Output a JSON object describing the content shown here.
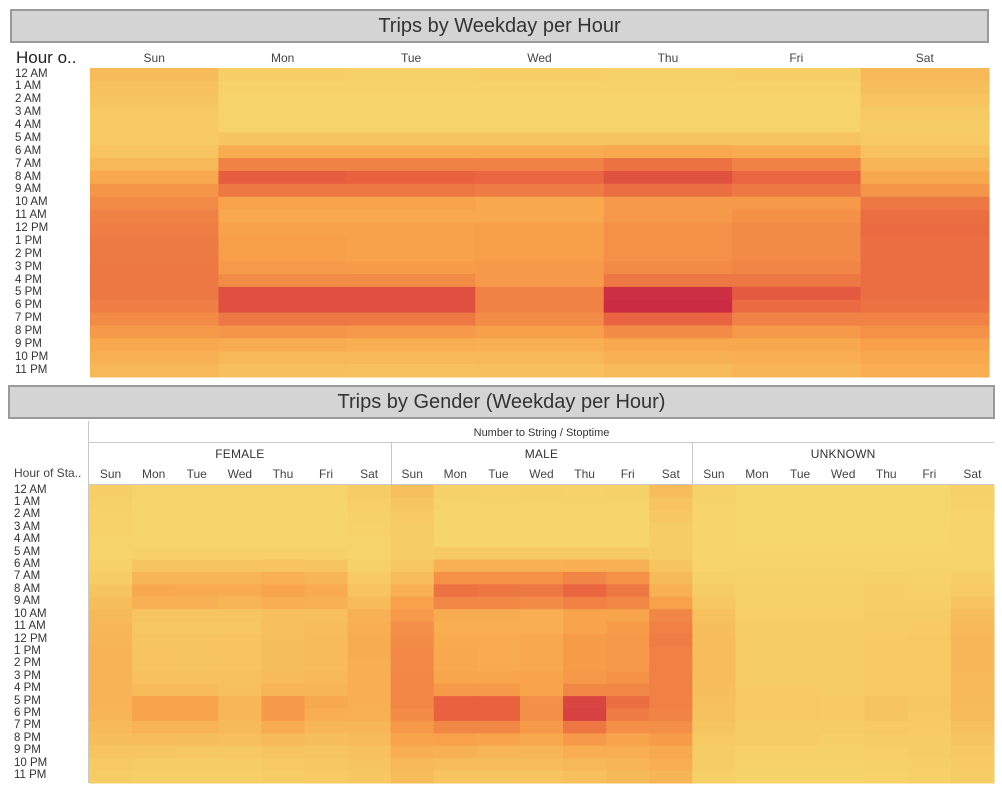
{
  "chart_data": [
    {
      "type": "heatmap",
      "title": "Trips by Weekday per Hour",
      "row_field": "Hour o..",
      "columns": [
        "Sun",
        "Mon",
        "Tue",
        "Wed",
        "Thu",
        "Fri",
        "Sat"
      ],
      "rows": [
        "12 AM",
        "1 AM",
        "2 AM",
        "3 AM",
        "4 AM",
        "5 AM",
        "6 AM",
        "7 AM",
        "8 AM",
        "9 AM",
        "10 AM",
        "11 AM",
        "12 PM",
        "1 PM",
        "2 PM",
        "3 PM",
        "4 PM",
        "5 PM",
        "6 PM",
        "7 PM",
        "8 PM",
        "9 PM",
        "10 PM",
        "11 PM"
      ],
      "values_relative_intensity": [
        [
          0.18,
          0.06,
          0.05,
          0.06,
          0.05,
          0.06,
          0.2
        ],
        [
          0.14,
          0.04,
          0.04,
          0.04,
          0.04,
          0.04,
          0.16
        ],
        [
          0.12,
          0.03,
          0.03,
          0.03,
          0.03,
          0.03,
          0.13
        ],
        [
          0.1,
          0.03,
          0.03,
          0.03,
          0.03,
          0.03,
          0.1
        ],
        [
          0.09,
          0.03,
          0.03,
          0.03,
          0.03,
          0.03,
          0.08
        ],
        [
          0.09,
          0.12,
          0.12,
          0.12,
          0.12,
          0.12,
          0.09
        ],
        [
          0.13,
          0.28,
          0.28,
          0.28,
          0.3,
          0.28,
          0.14
        ],
        [
          0.2,
          0.5,
          0.5,
          0.5,
          0.58,
          0.5,
          0.22
        ],
        [
          0.3,
          0.68,
          0.66,
          0.64,
          0.74,
          0.64,
          0.3
        ],
        [
          0.4,
          0.55,
          0.55,
          0.53,
          0.6,
          0.55,
          0.4
        ],
        [
          0.45,
          0.32,
          0.32,
          0.3,
          0.38,
          0.38,
          0.55
        ],
        [
          0.5,
          0.3,
          0.3,
          0.3,
          0.38,
          0.42,
          0.6
        ],
        [
          0.52,
          0.33,
          0.33,
          0.35,
          0.42,
          0.45,
          0.62
        ],
        [
          0.54,
          0.35,
          0.33,
          0.35,
          0.42,
          0.45,
          0.6
        ],
        [
          0.54,
          0.35,
          0.33,
          0.35,
          0.42,
          0.45,
          0.6
        ],
        [
          0.55,
          0.37,
          0.36,
          0.38,
          0.45,
          0.48,
          0.6
        ],
        [
          0.55,
          0.45,
          0.45,
          0.38,
          0.55,
          0.55,
          0.6
        ],
        [
          0.55,
          0.75,
          0.75,
          0.5,
          0.9,
          0.7,
          0.6
        ],
        [
          0.52,
          0.75,
          0.75,
          0.5,
          0.92,
          0.62,
          0.58
        ],
        [
          0.45,
          0.55,
          0.55,
          0.45,
          0.65,
          0.5,
          0.5
        ],
        [
          0.38,
          0.4,
          0.38,
          0.35,
          0.45,
          0.38,
          0.42
        ],
        [
          0.3,
          0.28,
          0.26,
          0.25,
          0.3,
          0.3,
          0.34
        ],
        [
          0.24,
          0.2,
          0.2,
          0.2,
          0.24,
          0.26,
          0.3
        ],
        [
          0.2,
          0.15,
          0.14,
          0.15,
          0.18,
          0.22,
          0.26
        ]
      ],
      "color_scale": [
        "#f6d96c",
        "#f8a24a",
        "#e8613f",
        "#c21b45"
      ]
    },
    {
      "type": "heatmap",
      "title": "Trips by Gender (Weekday per Hour)",
      "row_field": "Hour of Sta..",
      "column_field": "Number to String / Stoptime",
      "groups": [
        "FEMALE",
        "MALE",
        "UNKNOWN"
      ],
      "columns": [
        "Sun",
        "Mon",
        "Tue",
        "Wed",
        "Thu",
        "Fri",
        "Sat"
      ],
      "rows": [
        "12 AM",
        "1 AM",
        "2 AM",
        "3 AM",
        "4 AM",
        "5 AM",
        "6 AM",
        "7 AM",
        "8 AM",
        "9 AM",
        "10 AM",
        "11 AM",
        "12 PM",
        "1 PM",
        "2 PM",
        "3 PM",
        "4 PM",
        "5 PM",
        "6 PM",
        "7 PM",
        "8 PM",
        "9 PM",
        "10 PM",
        "11 PM"
      ],
      "values_relative_intensity": {
        "FEMALE": [
          [
            0.06,
            0.03,
            0.03,
            0.03,
            0.03,
            0.03,
            0.07
          ],
          [
            0.05,
            0.02,
            0.02,
            0.02,
            0.02,
            0.02,
            0.06
          ],
          [
            0.04,
            0.02,
            0.02,
            0.02,
            0.02,
            0.02,
            0.05
          ],
          [
            0.04,
            0.02,
            0.02,
            0.02,
            0.02,
            0.02,
            0.04
          ],
          [
            0.03,
            0.02,
            0.02,
            0.02,
            0.02,
            0.02,
            0.03
          ],
          [
            0.03,
            0.05,
            0.05,
            0.05,
            0.05,
            0.05,
            0.03
          ],
          [
            0.05,
            0.12,
            0.12,
            0.12,
            0.13,
            0.12,
            0.05
          ],
          [
            0.08,
            0.22,
            0.22,
            0.22,
            0.25,
            0.22,
            0.09
          ],
          [
            0.12,
            0.3,
            0.28,
            0.28,
            0.32,
            0.28,
            0.13
          ],
          [
            0.16,
            0.24,
            0.24,
            0.22,
            0.26,
            0.24,
            0.18
          ],
          [
            0.19,
            0.12,
            0.12,
            0.12,
            0.15,
            0.15,
            0.24
          ],
          [
            0.21,
            0.11,
            0.11,
            0.11,
            0.15,
            0.17,
            0.26
          ],
          [
            0.22,
            0.12,
            0.12,
            0.13,
            0.16,
            0.18,
            0.27
          ],
          [
            0.23,
            0.13,
            0.12,
            0.13,
            0.16,
            0.18,
            0.27
          ],
          [
            0.23,
            0.13,
            0.12,
            0.13,
            0.16,
            0.18,
            0.26
          ],
          [
            0.23,
            0.14,
            0.14,
            0.14,
            0.18,
            0.2,
            0.26
          ],
          [
            0.23,
            0.18,
            0.18,
            0.15,
            0.22,
            0.22,
            0.26
          ],
          [
            0.23,
            0.32,
            0.32,
            0.21,
            0.38,
            0.3,
            0.26
          ],
          [
            0.22,
            0.32,
            0.32,
            0.21,
            0.38,
            0.26,
            0.25
          ],
          [
            0.19,
            0.23,
            0.23,
            0.19,
            0.27,
            0.21,
            0.21
          ],
          [
            0.16,
            0.17,
            0.16,
            0.15,
            0.19,
            0.16,
            0.18
          ],
          [
            0.12,
            0.12,
            0.11,
            0.1,
            0.12,
            0.12,
            0.14
          ],
          [
            0.1,
            0.08,
            0.08,
            0.08,
            0.1,
            0.11,
            0.12
          ],
          [
            0.08,
            0.06,
            0.06,
            0.06,
            0.07,
            0.09,
            0.11
          ]
        ],
        "MALE": [
          [
            0.15,
            0.05,
            0.04,
            0.05,
            0.04,
            0.05,
            0.17
          ],
          [
            0.12,
            0.03,
            0.03,
            0.03,
            0.03,
            0.03,
            0.13
          ],
          [
            0.1,
            0.02,
            0.02,
            0.02,
            0.02,
            0.02,
            0.11
          ],
          [
            0.08,
            0.02,
            0.02,
            0.02,
            0.02,
            0.02,
            0.08
          ],
          [
            0.07,
            0.02,
            0.02,
            0.02,
            0.02,
            0.02,
            0.07
          ],
          [
            0.07,
            0.1,
            0.1,
            0.1,
            0.1,
            0.1,
            0.07
          ],
          [
            0.11,
            0.24,
            0.24,
            0.24,
            0.26,
            0.24,
            0.12
          ],
          [
            0.17,
            0.42,
            0.42,
            0.42,
            0.48,
            0.42,
            0.19
          ],
          [
            0.25,
            0.58,
            0.56,
            0.55,
            0.64,
            0.55,
            0.25
          ],
          [
            0.34,
            0.47,
            0.47,
            0.45,
            0.51,
            0.47,
            0.34
          ],
          [
            0.38,
            0.27,
            0.27,
            0.26,
            0.32,
            0.32,
            0.47
          ],
          [
            0.43,
            0.26,
            0.26,
            0.26,
            0.32,
            0.36,
            0.51
          ],
          [
            0.44,
            0.28,
            0.28,
            0.3,
            0.36,
            0.38,
            0.53
          ],
          [
            0.46,
            0.3,
            0.28,
            0.3,
            0.36,
            0.38,
            0.51
          ],
          [
            0.46,
            0.3,
            0.28,
            0.3,
            0.36,
            0.38,
            0.51
          ],
          [
            0.47,
            0.31,
            0.31,
            0.32,
            0.38,
            0.41,
            0.51
          ],
          [
            0.47,
            0.38,
            0.38,
            0.32,
            0.47,
            0.47,
            0.51
          ],
          [
            0.47,
            0.66,
            0.66,
            0.43,
            0.8,
            0.6,
            0.51
          ],
          [
            0.44,
            0.66,
            0.66,
            0.43,
            0.82,
            0.53,
            0.49
          ],
          [
            0.38,
            0.47,
            0.47,
            0.38,
            0.56,
            0.43,
            0.43
          ],
          [
            0.32,
            0.34,
            0.32,
            0.3,
            0.38,
            0.32,
            0.36
          ],
          [
            0.26,
            0.24,
            0.22,
            0.21,
            0.26,
            0.26,
            0.29
          ],
          [
            0.2,
            0.17,
            0.17,
            0.17,
            0.2,
            0.22,
            0.26
          ],
          [
            0.17,
            0.13,
            0.12,
            0.13,
            0.15,
            0.19,
            0.22
          ]
        ],
        "UNKNOWN": [
          [
            0.04,
            0.01,
            0.01,
            0.01,
            0.01,
            0.01,
            0.05
          ],
          [
            0.03,
            0.01,
            0.01,
            0.01,
            0.01,
            0.01,
            0.04
          ],
          [
            0.03,
            0.01,
            0.01,
            0.01,
            0.01,
            0.01,
            0.03
          ],
          [
            0.02,
            0.01,
            0.01,
            0.01,
            0.01,
            0.01,
            0.02
          ],
          [
            0.02,
            0.01,
            0.01,
            0.01,
            0.01,
            0.01,
            0.02
          ],
          [
            0.02,
            0.02,
            0.02,
            0.02,
            0.02,
            0.02,
            0.02
          ],
          [
            0.03,
            0.03,
            0.03,
            0.03,
            0.03,
            0.03,
            0.03
          ],
          [
            0.05,
            0.04,
            0.04,
            0.04,
            0.05,
            0.04,
            0.06
          ],
          [
            0.08,
            0.05,
            0.05,
            0.05,
            0.06,
            0.05,
            0.09
          ],
          [
            0.11,
            0.05,
            0.05,
            0.05,
            0.06,
            0.06,
            0.13
          ],
          [
            0.14,
            0.06,
            0.06,
            0.06,
            0.07,
            0.08,
            0.17
          ],
          [
            0.16,
            0.07,
            0.07,
            0.07,
            0.08,
            0.09,
            0.2
          ],
          [
            0.17,
            0.07,
            0.07,
            0.08,
            0.09,
            0.1,
            0.21
          ],
          [
            0.17,
            0.08,
            0.07,
            0.08,
            0.09,
            0.1,
            0.21
          ],
          [
            0.17,
            0.08,
            0.07,
            0.08,
            0.09,
            0.1,
            0.21
          ],
          [
            0.17,
            0.08,
            0.08,
            0.08,
            0.1,
            0.1,
            0.2
          ],
          [
            0.16,
            0.09,
            0.09,
            0.08,
            0.1,
            0.1,
            0.2
          ],
          [
            0.15,
            0.1,
            0.1,
            0.09,
            0.12,
            0.11,
            0.19
          ],
          [
            0.14,
            0.1,
            0.1,
            0.09,
            0.12,
            0.1,
            0.18
          ],
          [
            0.12,
            0.08,
            0.08,
            0.08,
            0.1,
            0.09,
            0.15
          ],
          [
            0.1,
            0.07,
            0.07,
            0.06,
            0.08,
            0.08,
            0.12
          ],
          [
            0.08,
            0.05,
            0.05,
            0.05,
            0.06,
            0.07,
            0.1
          ],
          [
            0.07,
            0.04,
            0.04,
            0.04,
            0.05,
            0.06,
            0.09
          ],
          [
            0.05,
            0.03,
            0.03,
            0.03,
            0.04,
            0.05,
            0.07
          ]
        ]
      },
      "color_scale": [
        "#f6d96c",
        "#f8a24a",
        "#e8613f",
        "#c21b45"
      ]
    }
  ]
}
